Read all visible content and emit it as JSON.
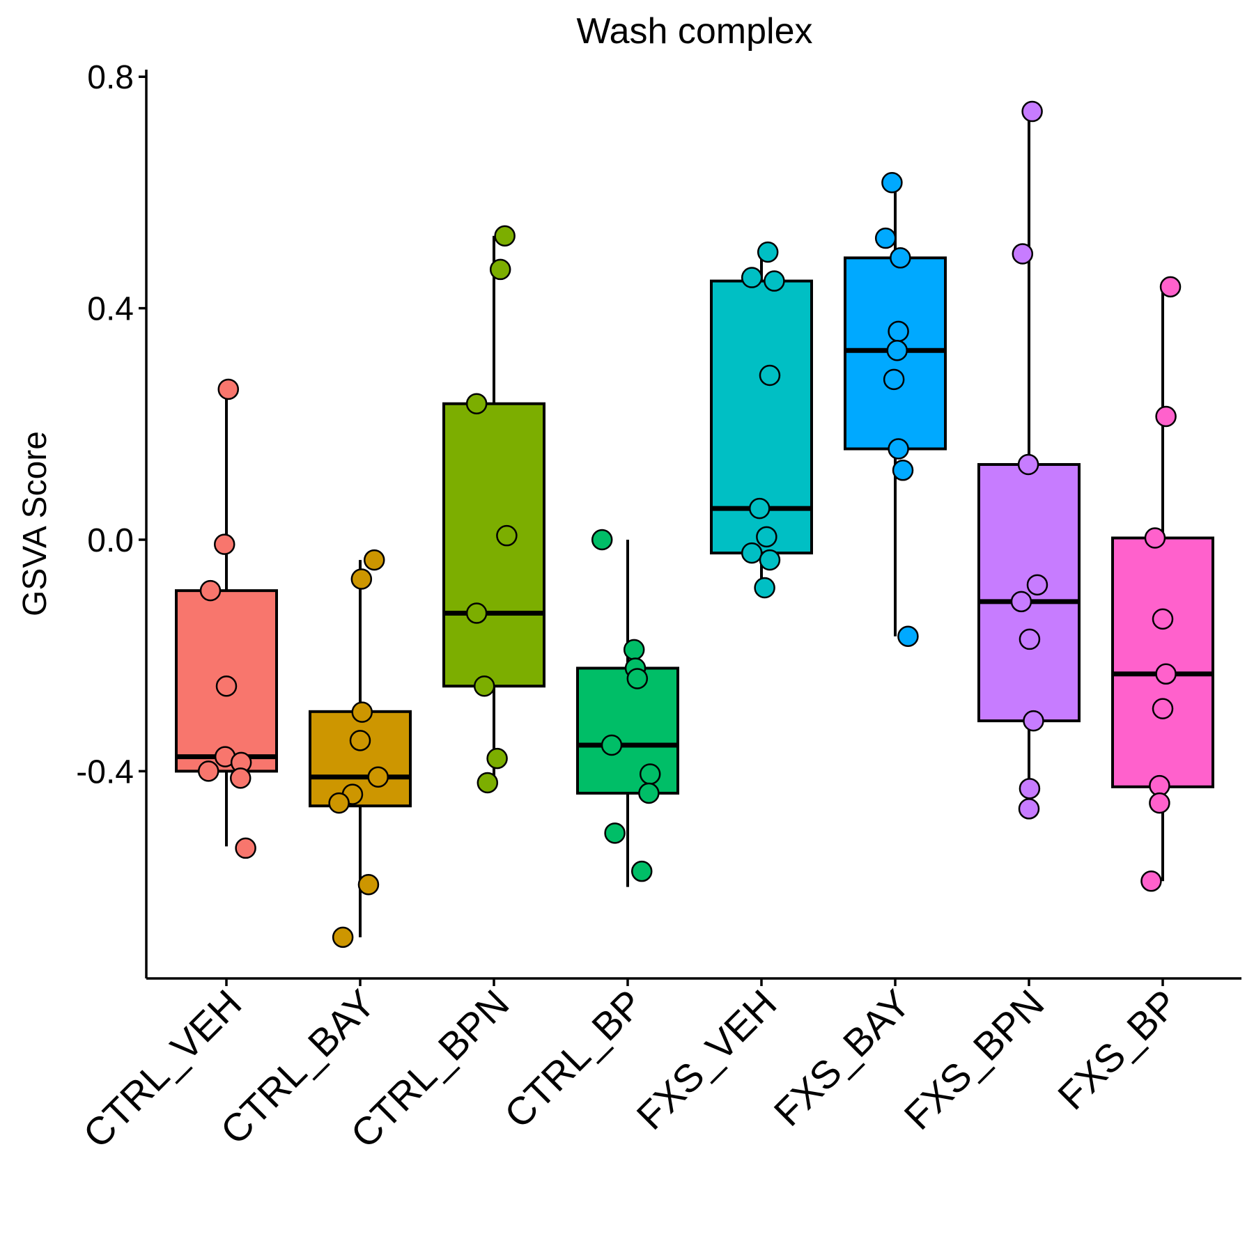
{
  "chart_data": {
    "type": "boxplot",
    "title": "Wash complex",
    "ylabel": "GSVA Score",
    "xlabel": "",
    "ylim": [
      -0.77,
      0.82
    ],
    "yticks": [
      -0.4,
      0.0,
      0.4,
      0.8
    ],
    "ytick_labels": [
      "-0.4",
      "0.0",
      "0.4",
      "0.8"
    ],
    "grid": false,
    "legend": "none",
    "categories": [
      "CTRL_VEH",
      "CTRL_BAY",
      "CTRL_BPN",
      "CTRL_BP",
      "FXS_VEH",
      "FXS_BAY",
      "FXS_BPN",
      "FXS_BP"
    ],
    "colors": [
      "#F8766D",
      "#CD9600",
      "#7CAE00",
      "#00BE67",
      "#00BFC4",
      "#00A9FF",
      "#C77CFF",
      "#FF61CC"
    ],
    "boxes": [
      {
        "name": "CTRL_VEH",
        "whisker_low": -0.53,
        "q1": -0.4,
        "median": -0.375,
        "q3": -0.088,
        "whisker_high": 0.26
      },
      {
        "name": "CTRL_BAY",
        "whisker_low": -0.687,
        "q1": -0.46,
        "median": -0.41,
        "q3": -0.297,
        "whisker_high": -0.035
      },
      {
        "name": "CTRL_BPN",
        "whisker_low": -0.415,
        "q1": -0.253,
        "median": -0.127,
        "q3": 0.235,
        "whisker_high": 0.525
      },
      {
        "name": "CTRL_BP",
        "whisker_low": -0.6,
        "q1": -0.438,
        "median": -0.355,
        "q3": -0.222,
        "whisker_high": 0.0
      },
      {
        "name": "FXS_VEH",
        "whisker_low": -0.083,
        "q1": -0.023,
        "median": 0.054,
        "q3": 0.447,
        "whisker_high": 0.497
      },
      {
        "name": "FXS_BAY",
        "whisker_low": -0.167,
        "q1": 0.157,
        "median": 0.327,
        "q3": 0.487,
        "whisker_high": 0.617
      },
      {
        "name": "FXS_BPN",
        "whisker_low": -0.465,
        "q1": -0.313,
        "median": -0.107,
        "q3": 0.13,
        "whisker_high": 0.74
      },
      {
        "name": "FXS_BP",
        "whisker_low": -0.59,
        "q1": -0.427,
        "median": -0.232,
        "q3": 0.003,
        "whisker_high": 0.437
      }
    ],
    "points": [
      [
        {
          "dx": 0.03,
          "y": 0.26
        },
        {
          "dx": -0.03,
          "y": -0.008
        },
        {
          "dx": -0.25,
          "y": -0.088
        },
        {
          "dx": 0.0,
          "y": -0.253
        },
        {
          "dx": -0.02,
          "y": -0.375
        },
        {
          "dx": 0.23,
          "y": -0.385
        },
        {
          "dx": -0.28,
          "y": -0.4
        },
        {
          "dx": 0.22,
          "y": -0.412
        },
        {
          "dx": 0.3,
          "y": -0.533
        }
      ],
      [
        {
          "dx": 0.22,
          "y": -0.035
        },
        {
          "dx": 0.02,
          "y": -0.068
        },
        {
          "dx": 0.03,
          "y": -0.298
        },
        {
          "dx": 0.0,
          "y": -0.347
        },
        {
          "dx": 0.28,
          "y": -0.41
        },
        {
          "dx": -0.12,
          "y": -0.44
        },
        {
          "dx": -0.33,
          "y": -0.455
        },
        {
          "dx": 0.13,
          "y": -0.596
        },
        {
          "dx": -0.27,
          "y": -0.687
        }
      ],
      [
        {
          "dx": 0.17,
          "y": 0.525
        },
        {
          "dx": 0.1,
          "y": 0.467
        },
        {
          "dx": -0.27,
          "y": 0.235
        },
        {
          "dx": 0.2,
          "y": 0.007
        },
        {
          "dx": -0.27,
          "y": -0.127
        },
        {
          "dx": -0.15,
          "y": -0.253
        },
        {
          "dx": 0.05,
          "y": -0.378
        },
        {
          "dx": -0.1,
          "y": -0.42
        }
      ],
      [
        {
          "dx": -0.4,
          "y": 0.0
        },
        {
          "dx": 0.1,
          "y": -0.19
        },
        {
          "dx": 0.12,
          "y": -0.222
        },
        {
          "dx": 0.15,
          "y": -0.24
        },
        {
          "dx": -0.25,
          "y": -0.355
        },
        {
          "dx": 0.35,
          "y": -0.405
        },
        {
          "dx": 0.33,
          "y": -0.438
        },
        {
          "dx": -0.2,
          "y": -0.507
        },
        {
          "dx": 0.22,
          "y": -0.573
        }
      ],
      [
        {
          "dx": 0.1,
          "y": 0.497
        },
        {
          "dx": -0.15,
          "y": 0.453
        },
        {
          "dx": 0.2,
          "y": 0.447
        },
        {
          "dx": 0.13,
          "y": 0.284
        },
        {
          "dx": -0.03,
          "y": 0.054
        },
        {
          "dx": 0.08,
          "y": 0.005
        },
        {
          "dx": -0.15,
          "y": -0.023
        },
        {
          "dx": 0.13,
          "y": -0.035
        },
        {
          "dx": 0.05,
          "y": -0.083
        }
      ],
      [
        {
          "dx": -0.05,
          "y": 0.617
        },
        {
          "dx": -0.15,
          "y": 0.521
        },
        {
          "dx": 0.08,
          "y": 0.487
        },
        {
          "dx": 0.05,
          "y": 0.36
        },
        {
          "dx": 0.03,
          "y": 0.327
        },
        {
          "dx": -0.02,
          "y": 0.277
        },
        {
          "dx": 0.05,
          "y": 0.157
        },
        {
          "dx": 0.12,
          "y": 0.12
        },
        {
          "dx": 0.2,
          "y": -0.167
        }
      ],
      [
        {
          "dx": 0.05,
          "y": 0.74
        },
        {
          "dx": -0.1,
          "y": 0.494
        },
        {
          "dx": -0.01,
          "y": 0.13
        },
        {
          "dx": 0.13,
          "y": -0.078
        },
        {
          "dx": -0.12,
          "y": -0.107
        },
        {
          "dx": 0.01,
          "y": -0.172
        },
        {
          "dx": 0.07,
          "y": -0.313
        },
        {
          "dx": 0.01,
          "y": -0.43
        },
        {
          "dx": 0.0,
          "y": -0.465
        }
      ],
      [
        {
          "dx": 0.12,
          "y": 0.437
        },
        {
          "dx": 0.05,
          "y": 0.213
        },
        {
          "dx": -0.12,
          "y": 0.003
        },
        {
          "dx": 0.0,
          "y": -0.137
        },
        {
          "dx": 0.05,
          "y": -0.232
        },
        {
          "dx": 0.0,
          "y": -0.292
        },
        {
          "dx": -0.05,
          "y": -0.425
        },
        {
          "dx": -0.05,
          "y": -0.455
        },
        {
          "dx": -0.18,
          "y": -0.59
        }
      ]
    ]
  }
}
